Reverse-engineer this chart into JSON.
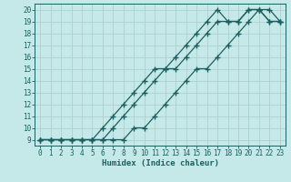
{
  "xlabel": "Humidex (Indice chaleur)",
  "ylabel": "",
  "xlim": [
    -0.5,
    23.5
  ],
  "ylim": [
    8.5,
    20.5
  ],
  "xticks": [
    0,
    1,
    2,
    3,
    4,
    5,
    6,
    7,
    8,
    9,
    10,
    11,
    12,
    13,
    14,
    15,
    16,
    17,
    18,
    19,
    20,
    21,
    22,
    23
  ],
  "yticks": [
    9,
    10,
    11,
    12,
    13,
    14,
    15,
    16,
    17,
    18,
    19,
    20
  ],
  "bg_color": "#c5e8e8",
  "grid_color": "#b0d0d0",
  "line_color": "#1a6060",
  "line1_x": [
    0,
    1,
    2,
    3,
    4,
    5,
    6,
    7,
    8,
    9,
    10,
    11,
    12,
    13,
    14,
    15,
    16,
    17,
    18,
    19,
    20,
    21,
    22,
    23
  ],
  "line1_y": [
    9,
    9,
    9,
    9,
    9,
    9,
    9,
    10,
    11,
    12,
    13,
    14,
    15,
    15,
    16,
    17,
    18,
    19,
    19,
    19,
    20,
    20,
    19,
    19
  ],
  "line2_x": [
    0,
    1,
    2,
    3,
    4,
    5,
    6,
    7,
    8,
    9,
    10,
    11,
    12,
    13,
    14,
    15,
    16,
    17,
    18,
    19,
    20,
    21,
    22,
    23
  ],
  "line2_y": [
    9,
    9,
    9,
    9,
    9,
    9,
    10,
    11,
    12,
    13,
    14,
    15,
    15,
    16,
    17,
    18,
    19,
    20,
    19,
    19,
    20,
    20,
    20,
    19
  ],
  "line3_x": [
    0,
    1,
    2,
    3,
    4,
    5,
    6,
    7,
    8,
    9,
    10,
    11,
    12,
    13,
    14,
    15,
    16,
    17,
    18,
    19,
    20,
    21,
    22,
    23
  ],
  "line3_y": [
    9,
    9,
    9,
    9,
    9,
    9,
    9,
    9,
    9,
    10,
    10,
    11,
    12,
    13,
    14,
    15,
    15,
    16,
    17,
    18,
    19,
    20,
    19,
    19
  ],
  "marker": "+",
  "markersize": 4,
  "linewidth": 0.9,
  "tick_fontsize": 5.5,
  "label_fontsize": 6.5
}
